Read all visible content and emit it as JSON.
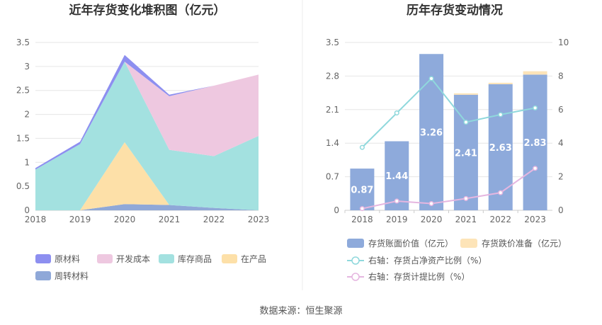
{
  "source_text": "数据来源：恒生聚源",
  "chart_data": [
    {
      "type": "area",
      "stacked": true,
      "title": "近年存货变化堆积图（亿元）",
      "categories": [
        "2018",
        "2019",
        "2020",
        "2021",
        "2022",
        "2023"
      ],
      "y_ticks": [
        "0",
        "0.5",
        "1",
        "1.5",
        "2",
        "2.5",
        "3",
        "3.5"
      ],
      "ylim": [
        0,
        3.5
      ],
      "grid": true,
      "legend_position": "bottom",
      "series": [
        {
          "name": "周转材料",
          "color": "#8fa8d8",
          "values": [
            0.0,
            0.0,
            0.13,
            0.11,
            0.05,
            0.0
          ]
        },
        {
          "name": "在产品",
          "color": "#fde0a8",
          "values": [
            0.0,
            0.0,
            1.29,
            0.0,
            0.0,
            0.0
          ]
        },
        {
          "name": "库存商品",
          "color": "#a3e1e0",
          "values": [
            0.85,
            1.38,
            1.68,
            1.15,
            1.08,
            1.55
          ]
        },
        {
          "name": "开发成本",
          "color": "#eec8e0",
          "values": [
            0.0,
            0.0,
            0.0,
            1.12,
            1.47,
            1.28
          ]
        },
        {
          "name": "原材料",
          "color": "#8d8ff0",
          "values": [
            0.03,
            0.05,
            0.14,
            0.03,
            0.0,
            0.0
          ]
        }
      ],
      "legend_order": [
        "原材料",
        "开发成本",
        "库存商品",
        "在产品",
        "周转材料"
      ]
    },
    {
      "type": "bar",
      "stacked": true,
      "title": "历年存货变动情况",
      "categories": [
        "2018",
        "2019",
        "2020",
        "2021",
        "2022",
        "2023"
      ],
      "y_ticks_left": [
        "0",
        "0.7",
        "1.4",
        "2.1",
        "2.8",
        "3.5"
      ],
      "ylim_left": [
        0,
        3.5
      ],
      "y_ticks_right": [
        "0",
        "2",
        "4",
        "6",
        "8",
        "10"
      ],
      "ylim_right": [
        0,
        10
      ],
      "grid": true,
      "legend_position": "bottom",
      "bars": [
        {
          "name": "存货账面价值（亿元）",
          "color": "#8eaadb",
          "values": [
            0.87,
            1.44,
            3.26,
            2.41,
            2.63,
            2.83
          ],
          "labels": [
            "0.87",
            "1.44",
            "3.26",
            "2.41",
            "2.63",
            "2.83"
          ]
        },
        {
          "name": "存货跌价准备（亿元）",
          "color": "#fde4b8",
          "values": [
            0.0,
            0.0,
            0.0,
            0.03,
            0.03,
            0.07
          ]
        }
      ],
      "lines": [
        {
          "name": "右轴：存货占净资产比例（%）",
          "color": "#8fd8dc",
          "values": [
            3.75,
            5.8,
            7.85,
            5.25,
            5.7,
            6.1
          ]
        },
        {
          "name": "右轴：存货计提比例（%）",
          "color": "#e5b6e0",
          "values": [
            0.1,
            0.55,
            0.4,
            0.7,
            1.05,
            2.5
          ]
        }
      ]
    }
  ]
}
